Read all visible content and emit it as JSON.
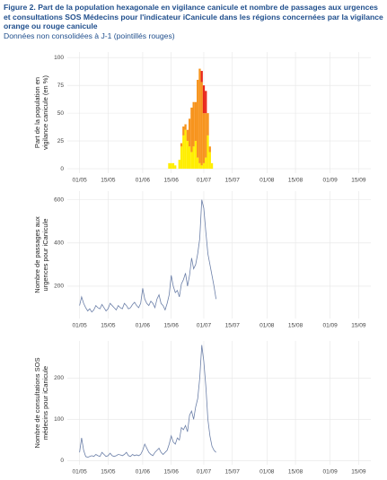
{
  "chart_data": [
    {
      "type": "bar",
      "title": "Figure 2. Part de la population hexagonale en vigilance canicule et nombre de passages aux urgences et consultations SOS Médecins pour l'indicateur iCanicule dans les régions concernées par la vigilance orange ou rouge canicule",
      "subtitle": "Données non consolidées à J-1 (pointillés rouges)",
      "ylabel": [
        "Part de la population en",
        "vigilance canicule (en %)"
      ],
      "x": [
        "14/06",
        "15/06",
        "16/06",
        "17/06",
        "18/06",
        "19/06",
        "20/06",
        "21/06",
        "22/06",
        "23/06",
        "24/06",
        "25/06",
        "26/06",
        "27/06",
        "28/06",
        "29/06",
        "30/06",
        "01/07",
        "02/07",
        "03/07",
        "04/07",
        "05/07",
        "06/07"
      ],
      "series": [
        {
          "color": "#ffee00",
          "values": [
            5,
            5,
            5,
            3,
            0,
            8,
            20,
            30,
            35,
            25,
            20,
            15,
            20,
            25,
            10,
            5,
            3,
            5,
            10,
            30,
            15,
            5,
            0
          ]
        },
        {
          "color": "#f7941d",
          "values": [
            0,
            0,
            0,
            0,
            0,
            0,
            3,
            8,
            5,
            10,
            25,
            40,
            40,
            35,
            70,
            85,
            75,
            45,
            40,
            20,
            5,
            0,
            0
          ]
        },
        {
          "color": "#e8261c",
          "values": [
            0,
            0,
            0,
            0,
            0,
            0,
            0,
            0,
            0,
            0,
            0,
            0,
            0,
            0,
            0,
            0,
            10,
            25,
            20,
            0,
            0,
            0,
            0
          ]
        }
      ],
      "xlim": [
        "25/04",
        "21/09"
      ],
      "xticks": [
        "01/05",
        "15/05",
        "01/06",
        "15/06",
        "01/07",
        "15/07",
        "01/08",
        "15/08",
        "01/09",
        "15/09"
      ],
      "ylim": [
        -4,
        105
      ],
      "yticks": [
        0,
        25,
        50,
        75,
        100
      ],
      "grid": true
    },
    {
      "type": "line",
      "ylabel": [
        "Nombre de passages aux",
        "urgences pour iCanicule"
      ],
      "x": [
        "01/05",
        "02/05",
        "03/05",
        "04/05",
        "05/05",
        "06/05",
        "07/05",
        "08/05",
        "09/05",
        "10/05",
        "11/05",
        "12/05",
        "13/05",
        "14/05",
        "15/05",
        "16/05",
        "17/05",
        "18/05",
        "19/05",
        "20/05",
        "21/05",
        "22/05",
        "23/05",
        "24/05",
        "25/05",
        "26/05",
        "27/05",
        "28/05",
        "29/05",
        "30/05",
        "31/05",
        "01/06",
        "02/06",
        "03/06",
        "04/06",
        "05/06",
        "06/06",
        "07/06",
        "08/06",
        "09/06",
        "10/06",
        "11/06",
        "12/06",
        "13/06",
        "14/06",
        "15/06",
        "16/06",
        "17/06",
        "18/06",
        "19/06",
        "20/06",
        "21/06",
        "22/06",
        "23/06",
        "24/06",
        "25/06",
        "26/06",
        "27/06",
        "28/06",
        "29/06",
        "30/06",
        "01/07",
        "02/07",
        "03/07",
        "04/07",
        "05/07",
        "06/07",
        "07/07"
      ],
      "series": [
        {
          "color": "#6b7fa8",
          "values": [
            110,
            150,
            120,
            100,
            85,
            95,
            80,
            90,
            110,
            100,
            95,
            115,
            100,
            85,
            95,
            120,
            110,
            100,
            90,
            110,
            100,
            95,
            120,
            110,
            95,
            100,
            115,
            125,
            110,
            100,
            120,
            190,
            140,
            120,
            110,
            130,
            120,
            100,
            140,
            160,
            120,
            110,
            90,
            120,
            160,
            250,
            200,
            170,
            180,
            150,
            210,
            230,
            260,
            200,
            250,
            330,
            280,
            300,
            350,
            420,
            600,
            560,
            450,
            350,
            300,
            250,
            200,
            140
          ]
        }
      ],
      "xlim": [
        "25/04",
        "21/09"
      ],
      "xticks": [
        "01/05",
        "15/05",
        "01/06",
        "15/06",
        "01/07",
        "15/07",
        "01/08",
        "15/08",
        "01/09",
        "15/09"
      ],
      "ylim": [
        50,
        640
      ],
      "yticks": [
        200,
        400,
        600
      ],
      "grid": true
    },
    {
      "type": "line",
      "ylabel": [
        "Nombre de consultations SOS",
        "médecins pour iCanicule"
      ],
      "x": [
        "01/05",
        "02/05",
        "03/05",
        "04/05",
        "05/05",
        "06/05",
        "07/05",
        "08/05",
        "09/05",
        "10/05",
        "11/05",
        "12/05",
        "13/05",
        "14/05",
        "15/05",
        "16/05",
        "17/05",
        "18/05",
        "19/05",
        "20/05",
        "21/05",
        "22/05",
        "23/05",
        "24/05",
        "25/05",
        "26/05",
        "27/05",
        "28/05",
        "29/05",
        "30/05",
        "31/05",
        "01/06",
        "02/06",
        "03/06",
        "04/06",
        "05/06",
        "06/06",
        "07/06",
        "08/06",
        "09/06",
        "10/06",
        "11/06",
        "12/06",
        "13/06",
        "14/06",
        "15/06",
        "16/06",
        "17/06",
        "18/06",
        "19/06",
        "20/06",
        "21/06",
        "22/06",
        "23/06",
        "24/06",
        "25/06",
        "26/06",
        "27/06",
        "28/06",
        "29/06",
        "30/06",
        "01/07",
        "02/07",
        "03/07",
        "04/07",
        "05/07",
        "06/07",
        "07/07"
      ],
      "series": [
        {
          "color": "#6b7fa8",
          "values": [
            20,
            55,
            25,
            10,
            8,
            10,
            12,
            10,
            15,
            12,
            10,
            20,
            15,
            10,
            12,
            18,
            12,
            10,
            12,
            15,
            14,
            12,
            15,
            20,
            12,
            10,
            15,
            12,
            14,
            12,
            15,
            25,
            40,
            30,
            20,
            15,
            12,
            20,
            25,
            30,
            20,
            15,
            20,
            25,
            40,
            60,
            45,
            40,
            55,
            50,
            80,
            75,
            85,
            70,
            110,
            120,
            100,
            130,
            150,
            200,
            280,
            240,
            180,
            100,
            60,
            35,
            25,
            20
          ]
        }
      ],
      "xlim": [
        "25/04",
        "21/09"
      ],
      "xticks": [
        "01/05",
        "15/05",
        "01/06",
        "15/06",
        "01/07",
        "15/07",
        "01/08",
        "15/08",
        "01/09",
        "15/09"
      ],
      "ylim": [
        -10,
        290
      ],
      "yticks": [
        0,
        100,
        200
      ],
      "grid": true
    }
  ]
}
